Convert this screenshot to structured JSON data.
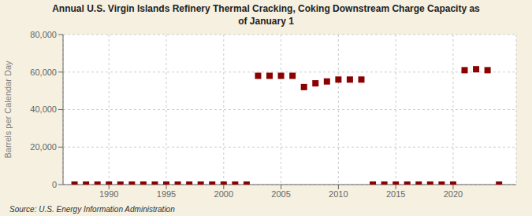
{
  "chart_data": {
    "type": "scatter",
    "title": "Annual U.S. Virgin Islands Refinery Thermal Cracking, Coking Downstream Charge Capacity as\nof January 1",
    "ylabel": "Barrels per Calendar Day",
    "annotations": [
      "Source: U.S. Energy Information Administration"
    ],
    "color": "#8b0000",
    "marker": "square",
    "grid": true,
    "xlim": [
      1986,
      2025.5
    ],
    "xticks": [
      1990,
      1995,
      2000,
      2005,
      2010,
      2015,
      2020
    ],
    "ylim": [
      0,
      80000
    ],
    "yticks": [
      0,
      {
        "value": 20000,
        "label": "20,000"
      },
      {
        "value": 40000,
        "label": "40,000"
      },
      {
        "value": 60000,
        "label": "60,000"
      },
      {
        "value": 80000,
        "label": "80,000"
      }
    ],
    "x": [
      1987,
      1988,
      1989,
      1990,
      1991,
      1992,
      1993,
      1994,
      1995,
      1996,
      1997,
      1998,
      1999,
      2000,
      2001,
      2002,
      2003,
      2004,
      2005,
      2006,
      2007,
      2008,
      2009,
      2010,
      2011,
      2012,
      2013,
      2014,
      2015,
      2016,
      2017,
      2018,
      2019,
      2020,
      2021,
      2022,
      2023,
      2024
    ],
    "values": [
      0,
      0,
      0,
      0,
      0,
      0,
      0,
      0,
      0,
      0,
      0,
      0,
      0,
      0,
      0,
      0,
      58000,
      58000,
      58000,
      58000,
      52000,
      54000,
      55000,
      56000,
      56000,
      56000,
      0,
      0,
      0,
      0,
      0,
      0,
      0,
      0,
      61000,
      61500,
      61000,
      0
    ]
  }
}
